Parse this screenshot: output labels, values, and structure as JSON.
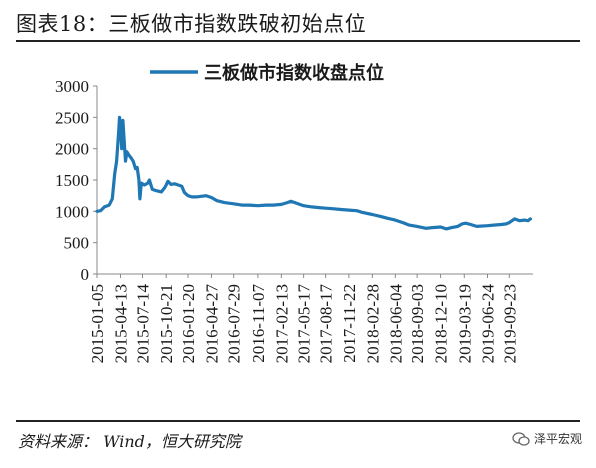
{
  "figure": {
    "title": "图表18：三板做市指数跌破初始点位",
    "source": "资料来源： Wind，恒大研究院",
    "watermark": "泽平宏观"
  },
  "colors": {
    "series": "#1f77b4",
    "axis": "#888888",
    "text": "#1a1a1a"
  },
  "chart_data": {
    "type": "line",
    "title": "",
    "xlabel": "",
    "ylabel": "",
    "ylim": [
      0,
      3000
    ],
    "yticks": [
      0,
      500,
      1000,
      1500,
      2000,
      2500,
      3000
    ],
    "xlim": [
      "2015-01-05",
      "2019-12-31"
    ],
    "xticks": [
      "2015-01-05",
      "2015-04-13",
      "2015-07-14",
      "2015-10-21",
      "2016-01-20",
      "2016-04-27",
      "2016-07-29",
      "2016-11-07",
      "2017-02-13",
      "2017-05-17",
      "2017-08-17",
      "2017-11-22",
      "2018-02-28",
      "2018-06-04",
      "2018-09-03",
      "2018-12-10",
      "2019-03-19",
      "2019-06-24",
      "2019-09-23"
    ],
    "grid": false,
    "legend_position": "top",
    "series": [
      {
        "name": "三板做市指数收盘点位",
        "points": [
          [
            "2015-01-05",
            1000
          ],
          [
            "2015-01-20",
            1010
          ],
          [
            "2015-02-05",
            1070
          ],
          [
            "2015-02-25",
            1100
          ],
          [
            "2015-03-10",
            1200
          ],
          [
            "2015-03-20",
            1600
          ],
          [
            "2015-03-28",
            1800
          ],
          [
            "2015-04-06",
            2300
          ],
          [
            "2015-04-09",
            2500
          ],
          [
            "2015-04-14",
            2350
          ],
          [
            "2015-04-18",
            2000
          ],
          [
            "2015-04-23",
            2450
          ],
          [
            "2015-04-28",
            2150
          ],
          [
            "2015-05-04",
            1800
          ],
          [
            "2015-05-10",
            1950
          ],
          [
            "2015-05-18",
            1900
          ],
          [
            "2015-05-28",
            1850
          ],
          [
            "2015-06-05",
            1800
          ],
          [
            "2015-06-15",
            1680
          ],
          [
            "2015-06-22",
            1700
          ],
          [
            "2015-06-29",
            1500
          ],
          [
            "2015-07-03",
            1200
          ],
          [
            "2015-07-09",
            1450
          ],
          [
            "2015-07-22",
            1420
          ],
          [
            "2015-08-05",
            1450
          ],
          [
            "2015-08-12",
            1500
          ],
          [
            "2015-08-24",
            1350
          ],
          [
            "2015-09-10",
            1330
          ],
          [
            "2015-10-01",
            1310
          ],
          [
            "2015-10-15",
            1380
          ],
          [
            "2015-10-21",
            1420
          ],
          [
            "2015-10-28",
            1480
          ],
          [
            "2015-11-10",
            1430
          ],
          [
            "2015-11-25",
            1440
          ],
          [
            "2015-12-10",
            1420
          ],
          [
            "2015-12-25",
            1400
          ],
          [
            "2016-01-05",
            1300
          ],
          [
            "2016-01-20",
            1250
          ],
          [
            "2016-02-05",
            1230
          ],
          [
            "2016-02-25",
            1230
          ],
          [
            "2016-03-15",
            1240
          ],
          [
            "2016-04-05",
            1250
          ],
          [
            "2016-04-27",
            1220
          ],
          [
            "2016-05-20",
            1170
          ],
          [
            "2016-06-20",
            1140
          ],
          [
            "2016-07-29",
            1120
          ],
          [
            "2016-09-01",
            1100
          ],
          [
            "2016-10-01",
            1100
          ],
          [
            "2016-11-07",
            1090
          ],
          [
            "2016-12-10",
            1100
          ],
          [
            "2017-01-10",
            1100
          ],
          [
            "2017-02-13",
            1110
          ],
          [
            "2017-03-10",
            1140
          ],
          [
            "2017-03-25",
            1160
          ],
          [
            "2017-04-10",
            1140
          ],
          [
            "2017-05-17",
            1090
          ],
          [
            "2017-06-20",
            1070
          ],
          [
            "2017-07-20",
            1060
          ],
          [
            "2017-08-17",
            1050
          ],
          [
            "2017-09-20",
            1040
          ],
          [
            "2017-10-20",
            1030
          ],
          [
            "2017-11-22",
            1020
          ],
          [
            "2017-12-25",
            1010
          ],
          [
            "2018-01-20",
            980
          ],
          [
            "2018-02-28",
            950
          ],
          [
            "2018-04-01",
            920
          ],
          [
            "2018-05-01",
            890
          ],
          [
            "2018-06-04",
            860
          ],
          [
            "2018-07-05",
            820
          ],
          [
            "2018-08-01",
            780
          ],
          [
            "2018-09-03",
            760
          ],
          [
            "2018-10-10",
            730
          ],
          [
            "2018-11-05",
            740
          ],
          [
            "2018-12-10",
            750
          ],
          [
            "2019-01-03",
            720
          ],
          [
            "2019-01-25",
            740
          ],
          [
            "2019-02-20",
            760
          ],
          [
            "2019-03-10",
            800
          ],
          [
            "2019-03-25",
            810
          ],
          [
            "2019-04-15",
            790
          ],
          [
            "2019-05-10",
            760
          ],
          [
            "2019-06-24",
            770
          ],
          [
            "2019-07-20",
            780
          ],
          [
            "2019-08-20",
            790
          ],
          [
            "2019-09-10",
            800
          ],
          [
            "2019-09-23",
            820
          ],
          [
            "2019-10-15",
            880
          ],
          [
            "2019-11-05",
            850
          ],
          [
            "2019-11-25",
            860
          ],
          [
            "2019-12-10",
            850
          ],
          [
            "2019-12-20",
            880
          ]
        ]
      }
    ]
  }
}
